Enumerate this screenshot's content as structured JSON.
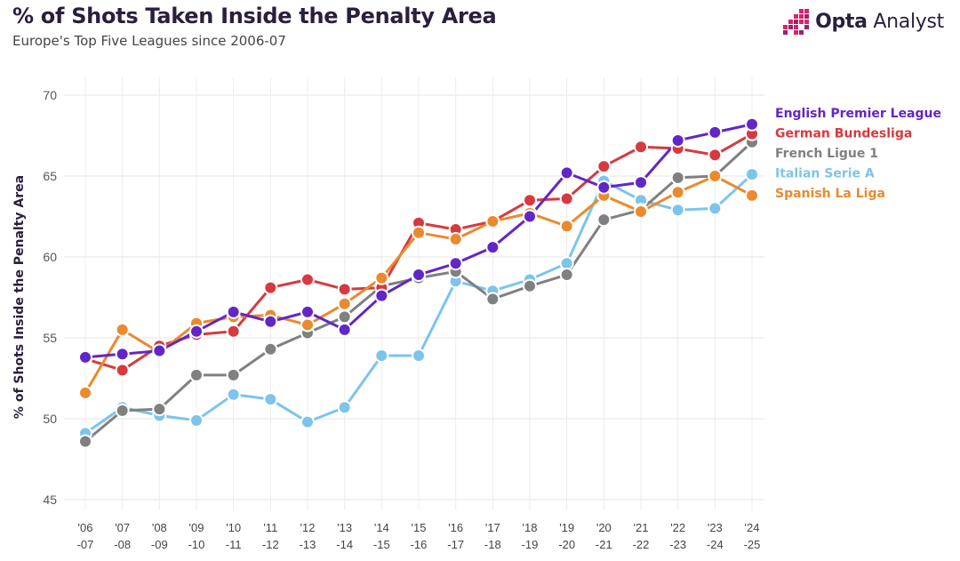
{
  "header": {
    "title": "% of Shots Taken Inside the Penalty Area",
    "subtitle": "Europe's Top Five Leagues since 2006-07"
  },
  "brand": {
    "bold": "Opta",
    "light": " Analyst",
    "icon": "opta-dots-logo"
  },
  "chart_data": {
    "type": "line",
    "title": "% of Shots Taken Inside the Penalty Area",
    "subtitle": "Europe's Top Five Leagues since 2006-07",
    "ylabel": "% of Shots Inside the Penalty Area",
    "xlabel": "",
    "ylim": [
      45,
      70
    ],
    "yticks": [
      45,
      50,
      55,
      60,
      65,
      70
    ],
    "grid": true,
    "legend_placement": "right (end labels)",
    "categories": [
      [
        "'06",
        "-07"
      ],
      [
        "'07",
        "-08"
      ],
      [
        "'08",
        "-09"
      ],
      [
        "'09",
        "-10"
      ],
      [
        "'10",
        "-11"
      ],
      [
        "'11",
        "-12"
      ],
      [
        "'12",
        "-13"
      ],
      [
        "'13",
        "-14"
      ],
      [
        "'14",
        "-15"
      ],
      [
        "'15",
        "-16"
      ],
      [
        "'16",
        "-17"
      ],
      [
        "'17",
        "-18"
      ],
      [
        "'18",
        "-19"
      ],
      [
        "'19",
        "-20"
      ],
      [
        "'20",
        "-21"
      ],
      [
        "'21",
        "-22"
      ],
      [
        "'22",
        "-23"
      ],
      [
        "'23",
        "-24"
      ],
      [
        "'24",
        "-25"
      ]
    ],
    "series": [
      {
        "name": "Italian Serie A",
        "color": "#7cc4ec",
        "values": [
          49.1,
          50.7,
          50.2,
          49.9,
          51.5,
          51.2,
          49.8,
          50.7,
          53.9,
          53.9,
          58.5,
          57.9,
          58.6,
          59.6,
          64.7,
          63.5,
          62.9,
          63.0,
          65.1
        ]
      },
      {
        "name": "French Ligue 1",
        "color": "#808080",
        "values": [
          48.6,
          50.5,
          50.6,
          52.7,
          52.7,
          54.3,
          55.3,
          56.3,
          58.2,
          58.7,
          59.1,
          57.4,
          58.2,
          58.9,
          62.3,
          62.9,
          64.9,
          65.0,
          67.1
        ]
      },
      {
        "name": "German Bundesliga",
        "color": "#d63a3f",
        "values": [
          53.7,
          53.0,
          54.5,
          55.2,
          55.4,
          58.1,
          58.6,
          58.0,
          58.1,
          62.1,
          61.7,
          62.2,
          63.5,
          63.6,
          65.6,
          66.8,
          66.7,
          66.3,
          67.6
        ]
      },
      {
        "name": "Spanish La Liga",
        "color": "#ea8a2c",
        "values": [
          51.6,
          55.5,
          54.1,
          55.9,
          56.3,
          56.4,
          55.8,
          57.1,
          58.7,
          61.5,
          61.1,
          62.2,
          62.7,
          61.9,
          63.8,
          62.8,
          64.0,
          65.0,
          63.8
        ]
      },
      {
        "name": "English Premier League",
        "color": "#6226c7",
        "values": [
          53.8,
          54.0,
          54.2,
          55.4,
          56.6,
          56.0,
          56.6,
          55.5,
          57.6,
          58.9,
          59.6,
          60.6,
          62.5,
          65.2,
          64.3,
          64.6,
          67.2,
          67.7,
          68.2
        ]
      }
    ],
    "legend": [
      {
        "name": "English Premier League",
        "color": "#6226c7"
      },
      {
        "name": "German Bundesliga",
        "color": "#d63a3f"
      },
      {
        "name": "French Ligue 1",
        "color": "#808080"
      },
      {
        "name": "Italian Serie A",
        "color": "#7cc4ec"
      },
      {
        "name": "Spanish La Liga",
        "color": "#ea8a2c"
      }
    ]
  }
}
